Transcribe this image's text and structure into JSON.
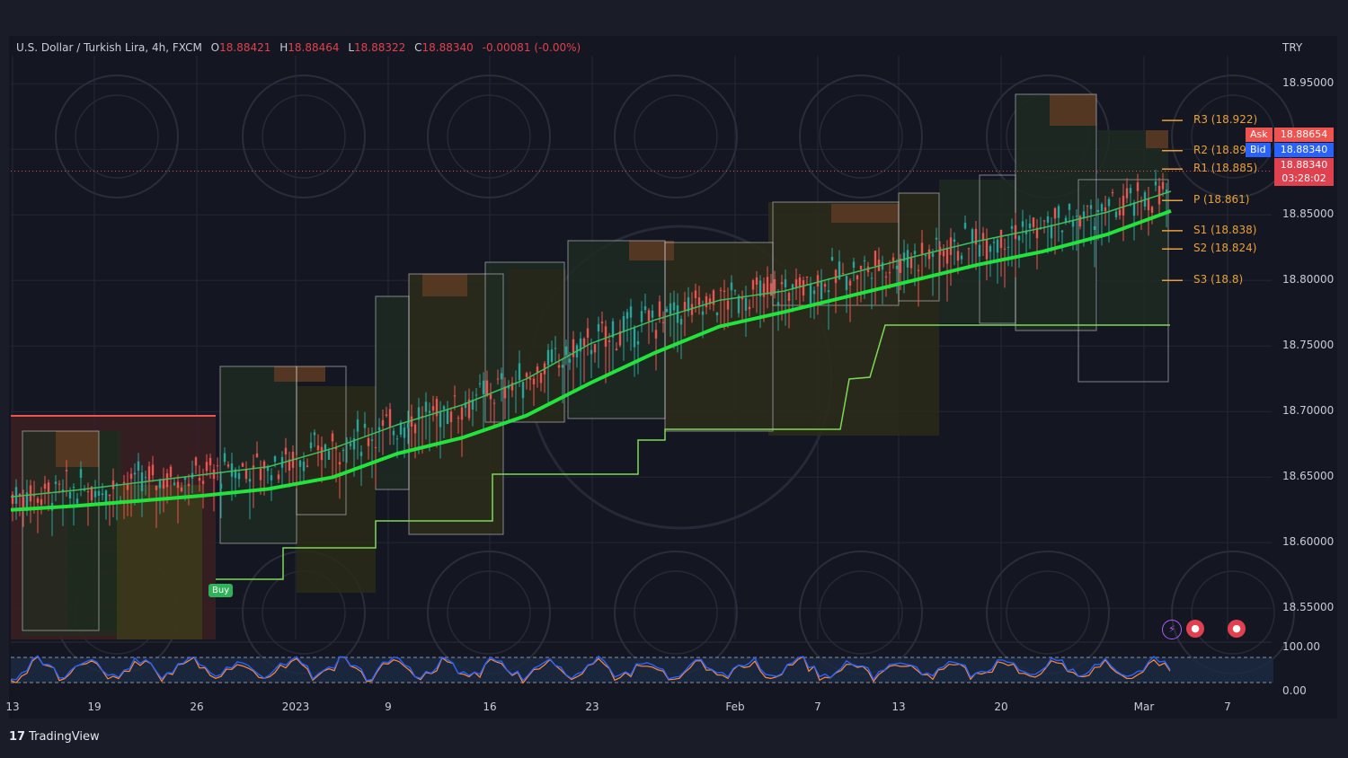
{
  "header": {
    "symbol": "U.S. Dollar / Turkish Lira, 4h, FXCM",
    "o_label": "O",
    "o_value": "18.88421",
    "h_label": "H",
    "h_value": "18.88464",
    "l_label": "L",
    "l_value": "18.88322",
    "c_label": "C",
    "c_value": "18.88340",
    "change": "-0.00081 (-0.00%)"
  },
  "currency": "TRY",
  "price_tags": {
    "ask_label": "Ask",
    "ask_value": "18.88654",
    "bid_label": "Bid",
    "bid_value": "18.88340",
    "last_value": "18.88340",
    "countdown": "03:28:02"
  },
  "pivots": [
    {
      "label": "R3 (18.922)",
      "value": 18.922
    },
    {
      "label": "R2 (18.899)",
      "value": 18.899
    },
    {
      "label": "R1 (18.885)",
      "value": 18.885
    },
    {
      "label": "P (18.861)",
      "value": 18.861
    },
    {
      "label": "S1 (18.838)",
      "value": 18.838
    },
    {
      "label": "S2 (18.824)",
      "value": 18.824
    },
    {
      "label": "S3 (18.8)",
      "value": 18.8
    }
  ],
  "signal": {
    "label": "Buy"
  },
  "oscillator": {
    "ticks": [
      "100.00",
      "0.00"
    ]
  },
  "brand": {
    "logo": "17",
    "name": "TradingView"
  },
  "colors": {
    "up": "#26a69a",
    "down": "#ef5350",
    "ema": "#22e33c",
    "pivot": "#e8a13a",
    "osc_blue": "#2962ff",
    "osc_orange": "#ff8a3d"
  },
  "chart_data": {
    "type": "line",
    "title": "U.S. Dollar / Turkish Lira, 4h, FXCM",
    "ylabel": "TRY",
    "ylim": [
      18.52,
      18.98
    ],
    "y_ticks": [
      "18.95000",
      "18.90000",
      "18.85000",
      "18.80000",
      "18.75000",
      "18.70000",
      "18.65000",
      "18.60000",
      "18.55000"
    ],
    "x_ticks": [
      "13",
      "19",
      "26",
      "2023",
      "9",
      "16",
      "23",
      "Feb",
      "7",
      "13",
      "20",
      "Mar",
      "7"
    ],
    "series": [
      {
        "values": [
          18.625,
          18.628,
          18.632,
          18.636,
          18.641,
          18.65,
          18.668,
          18.68,
          18.697,
          18.722,
          18.745,
          18.765,
          18.776,
          18.788,
          18.8,
          18.812,
          18.822,
          18.835,
          18.853
        ]
      },
      {
        "values": [
          18.635,
          18.64,
          18.646,
          18.652,
          18.658,
          18.672,
          18.69,
          18.705,
          18.725,
          18.752,
          18.77,
          18.785,
          18.792,
          18.805,
          18.818,
          18.83,
          18.84,
          18.852,
          18.868
        ]
      }
    ],
    "price_range_low": 18.52,
    "price_range_high": 18.955,
    "last_price": 18.8834,
    "grid": true
  }
}
